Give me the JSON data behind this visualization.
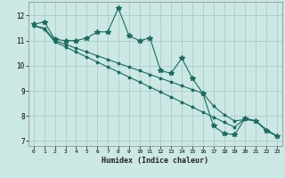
{
  "title": "",
  "xlabel": "Humidex (Indice chaleur)",
  "bg_color": "#cce8e4",
  "grid_color": "#aaccc8",
  "line_color": "#1a6b60",
  "xlim": [
    -0.5,
    23.5
  ],
  "ylim": [
    6.8,
    12.55
  ],
  "xticks": [
    0,
    1,
    2,
    3,
    4,
    5,
    6,
    7,
    8,
    9,
    10,
    11,
    12,
    13,
    14,
    15,
    16,
    17,
    18,
    19,
    20,
    21,
    22,
    23
  ],
  "yticks": [
    7,
    8,
    9,
    10,
    11,
    12
  ],
  "line1_x": [
    0,
    1,
    2,
    3,
    4,
    5,
    6,
    7,
    8,
    9,
    10,
    11,
    12,
    13,
    14,
    15,
    16,
    17,
    18,
    19,
    20,
    21,
    22,
    23
  ],
  "line1_y": [
    11.65,
    11.75,
    11.05,
    11.0,
    11.0,
    11.1,
    11.35,
    11.35,
    12.3,
    11.2,
    11.0,
    11.1,
    9.8,
    9.7,
    10.3,
    9.5,
    8.9,
    7.6,
    7.3,
    7.25,
    7.9,
    7.8,
    7.4,
    7.2
  ],
  "line2_x": [
    0,
    1,
    2,
    3,
    4,
    5,
    6,
    7,
    8,
    9,
    10,
    11,
    12,
    13,
    14,
    15,
    16,
    17,
    18,
    19,
    20,
    21,
    22,
    23
  ],
  "line2_y": [
    11.6,
    11.5,
    11.0,
    10.85,
    10.7,
    10.55,
    10.4,
    10.25,
    10.1,
    9.95,
    9.8,
    9.65,
    9.5,
    9.35,
    9.2,
    9.05,
    8.9,
    8.4,
    8.05,
    7.8,
    7.85,
    7.8,
    7.45,
    7.2
  ],
  "line3_x": [
    0,
    1,
    2,
    3,
    4,
    5,
    6,
    7,
    8,
    9,
    10,
    11,
    12,
    13,
    14,
    15,
    16,
    17,
    18,
    19,
    20,
    21,
    22,
    23
  ],
  "line3_y": [
    11.6,
    11.45,
    10.95,
    10.75,
    10.55,
    10.35,
    10.15,
    9.95,
    9.75,
    9.55,
    9.35,
    9.15,
    8.95,
    8.75,
    8.55,
    8.35,
    8.15,
    7.95,
    7.75,
    7.55,
    7.9,
    7.8,
    7.45,
    7.2
  ]
}
